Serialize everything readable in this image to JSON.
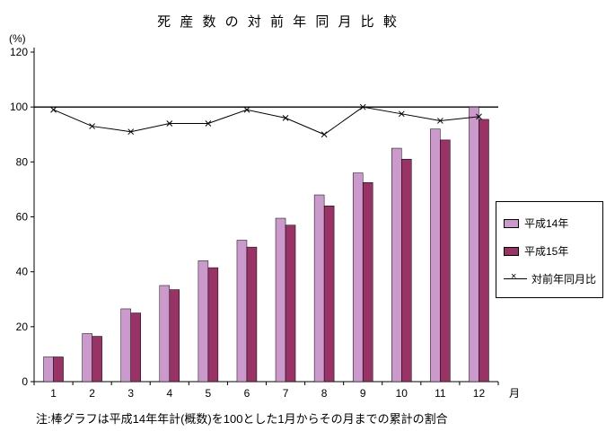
{
  "chart_data": {
    "type": "bar",
    "title": "死 産 数 の 対 前 年 同 月 比 較",
    "ylabel": "(%)",
    "xlabel": "月",
    "ylim": [
      0,
      120
    ],
    "ytick_step": 20,
    "grid": false,
    "legend_position": "right",
    "reference_line": 100,
    "categories": [
      "1",
      "2",
      "3",
      "4",
      "5",
      "6",
      "7",
      "8",
      "9",
      "10",
      "11",
      "12"
    ],
    "series": [
      {
        "name": "平成14年",
        "type": "bar",
        "color": "#cc99cc",
        "values": [
          9,
          17.5,
          26.5,
          35,
          44,
          51.5,
          59.5,
          68,
          76,
          85,
          92,
          100
        ]
      },
      {
        "name": "平成15年",
        "type": "bar",
        "color": "#993366",
        "values": [
          9,
          16.5,
          25,
          33.5,
          41.5,
          49,
          57,
          64,
          72.5,
          81,
          88,
          95.5
        ]
      },
      {
        "name": "対前年同月比",
        "type": "line",
        "color": "#000000",
        "marker": "x",
        "values": [
          99,
          93,
          91,
          94,
          94,
          99,
          96,
          90,
          100,
          97.5,
          95,
          96.5
        ]
      }
    ],
    "note": "注:棒グラフは平成14年年計(概数)を100とした1月からその月までの累計の割合"
  }
}
